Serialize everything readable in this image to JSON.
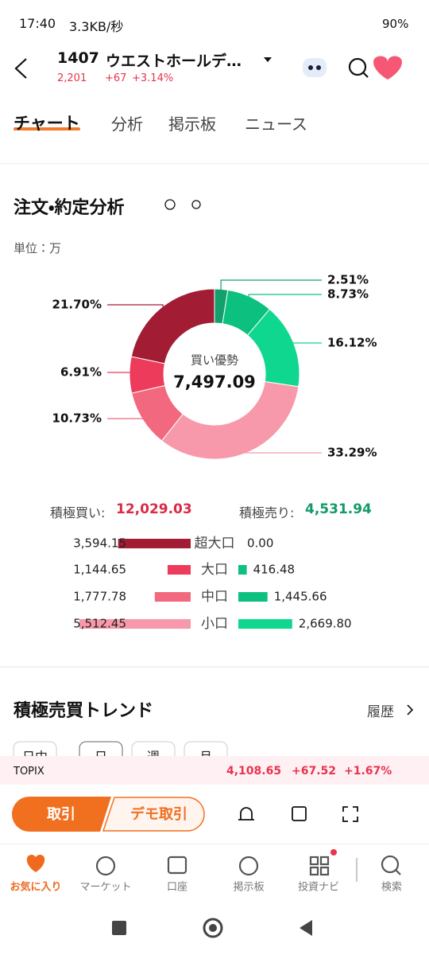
{
  "status_bar": {
    "time": "17:40",
    "speed": "3.3KB/秒",
    "battery": "90%"
  },
  "header": {
    "code": "1407",
    "name": "ウエストホールデ…",
    "price": "2,201",
    "change": "+67",
    "change_pct": "+3.14%"
  },
  "tabs": [
    "チャート",
    "分析",
    "掲示板",
    "ニュース"
  ],
  "section": {
    "title": "注文・約定分析",
    "unit": "単位：万"
  },
  "summary": {
    "center_label": "買い優勢",
    "center_value": "7,497.09",
    "buy_label": "積極買い:",
    "buy_total": "12,029.03",
    "sell_label": "積極売り:",
    "sell_total": "4,531.94"
  },
  "chart_data": [
    {
      "type": "pie",
      "values": [
        2.51,
        8.73,
        16.12,
        33.29,
        10.73,
        6.91,
        21.7
      ],
      "value_labels": [
        "2.51%",
        "8.73%",
        "16.12%",
        "33.29%",
        "10.73%",
        "6.91%",
        "21.70%"
      ],
      "colors": [
        "#12a06c",
        "#0cc07f",
        "#10d78f",
        "#f799aa",
        "#f2687f",
        "#ec3b5b",
        "#a21c34"
      ]
    },
    {
      "type": "bar",
      "categories": [
        "超大口",
        "大口",
        "中口",
        "小口"
      ],
      "series": [
        {
          "color": "#a21c34",
          "values": [
            3594.15,
            1144.65,
            1777.78,
            5512.45
          ],
          "value_labels": [
            "3,594.15",
            "1,144.65",
            "1,777.78",
            "5,512.45"
          ],
          "colors": [
            "#a21c34",
            "#ec3b5b",
            "#f2687f",
            "#f799aa"
          ]
        },
        {
          "color": "#12a06c",
          "values": [
            0,
            416.48,
            1445.66,
            2669.8
          ],
          "value_labels": [
            "0.00",
            "416.48",
            "1,445.66",
            "2,669.80"
          ],
          "colors": [
            "#12a06c",
            "#0cc07f",
            "#0cc07f",
            "#10d78f"
          ]
        }
      ]
    }
  ],
  "trend": {
    "title": "積極売買トレンド",
    "history": "履歴",
    "periods": [
      "日中",
      "日",
      "週",
      "月"
    ]
  },
  "ticker": {
    "name": "TOPIX",
    "price": "4,108.65",
    "change": "+67.52",
    "change_pct": "+1.67%"
  },
  "buttons": {
    "trade": "取引",
    "demo": "デモ取引"
  },
  "nav": [
    "お気に入り",
    "マーケット",
    "口座",
    "掲示板",
    "投資ナビ",
    "検索"
  ]
}
